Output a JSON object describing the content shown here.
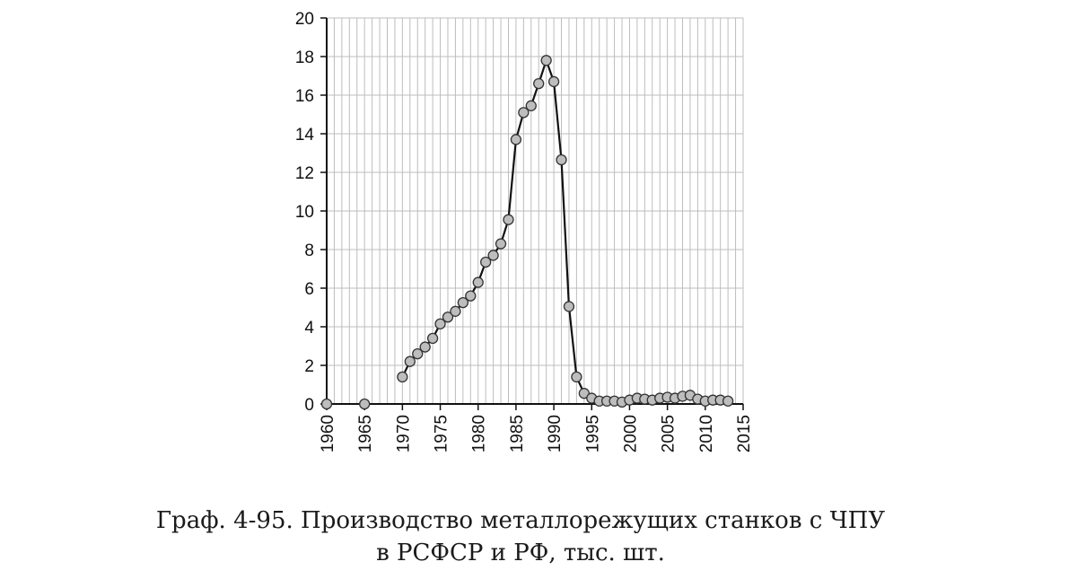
{
  "chart_data": {
    "type": "line",
    "title": "",
    "xlabel": "",
    "ylabel": "",
    "xlim": [
      1960,
      2015
    ],
    "ylim": [
      0,
      20
    ],
    "grid": true,
    "x_ticks": [
      "1960",
      "1965",
      "1970",
      "1975",
      "1980",
      "1985",
      "1990",
      "1995",
      "2000",
      "2005",
      "2010",
      "2015"
    ],
    "y_ticks": [
      "0",
      "2",
      "4",
      "6",
      "8",
      "10",
      "12",
      "14",
      "16",
      "18",
      "20"
    ],
    "series": [
      {
        "marker": "circle",
        "segments": [
          {
            "points": [
              [
                1960,
                0.0
              ],
              [
                1965,
                0.0
              ]
            ],
            "connected": false
          },
          {
            "points": [
              [
                1970,
                1.4
              ],
              [
                1971,
                2.2
              ],
              [
                1972,
                2.6
              ],
              [
                1973,
                2.95
              ],
              [
                1974,
                3.4
              ],
              [
                1975,
                4.15
              ],
              [
                1976,
                4.5
              ],
              [
                1977,
                4.8
              ],
              [
                1978,
                5.25
              ],
              [
                1979,
                5.6
              ],
              [
                1980,
                6.3
              ],
              [
                1981,
                7.35
              ],
              [
                1982,
                7.7
              ],
              [
                1983,
                8.3
              ],
              [
                1984,
                9.55
              ],
              [
                1985,
                13.7
              ],
              [
                1986,
                15.1
              ],
              [
                1987,
                15.45
              ],
              [
                1988,
                16.6
              ],
              [
                1989,
                17.8
              ],
              [
                1990,
                16.7
              ],
              [
                1991,
                12.65
              ],
              [
                1992,
                5.05
              ],
              [
                1993,
                1.4
              ],
              [
                1994,
                0.55
              ],
              [
                1995,
                0.3
              ],
              [
                1996,
                0.15
              ],
              [
                1997,
                0.15
              ],
              [
                1998,
                0.15
              ],
              [
                1999,
                0.1
              ],
              [
                2000,
                0.2
              ],
              [
                2001,
                0.3
              ],
              [
                2002,
                0.25
              ],
              [
                2003,
                0.2
              ],
              [
                2004,
                0.3
              ],
              [
                2005,
                0.35
              ],
              [
                2006,
                0.3
              ],
              [
                2007,
                0.4
              ],
              [
                2008,
                0.45
              ],
              [
                2009,
                0.25
              ],
              [
                2010,
                0.15
              ],
              [
                2011,
                0.2
              ],
              [
                2012,
                0.2
              ],
              [
                2013,
                0.15
              ]
            ],
            "connected": true
          }
        ]
      }
    ]
  },
  "caption": {
    "line1": "Граф. 4-95. Производство металлорежущих станков с ЧПУ",
    "line2": "в РСФСР и РФ, тыс. шт."
  },
  "colors": {
    "axis": "#111111",
    "grid": "#bdbdbd",
    "line": "#111111",
    "marker_fill": "#bdbdbd",
    "marker_stroke": "#333333"
  }
}
